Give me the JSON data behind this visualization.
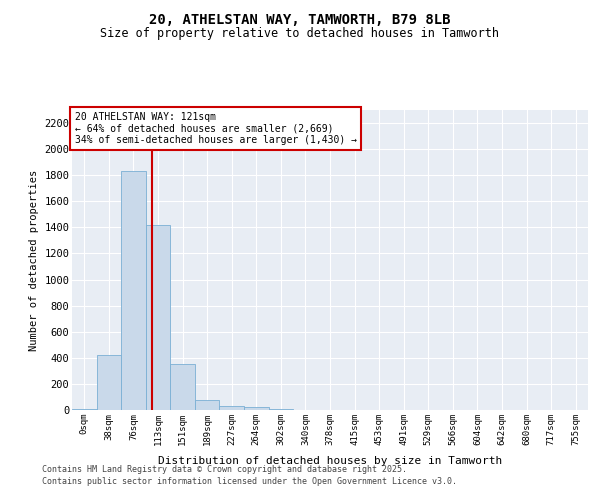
{
  "title1": "20, ATHELSTAN WAY, TAMWORTH, B79 8LB",
  "title2": "Size of property relative to detached houses in Tamworth",
  "xlabel": "Distribution of detached houses by size in Tamworth",
  "ylabel": "Number of detached properties",
  "bar_labels": [
    "0sqm",
    "38sqm",
    "76sqm",
    "113sqm",
    "151sqm",
    "189sqm",
    "227sqm",
    "264sqm",
    "302sqm",
    "340sqm",
    "378sqm",
    "415sqm",
    "453sqm",
    "491sqm",
    "529sqm",
    "566sqm",
    "604sqm",
    "642sqm",
    "680sqm",
    "717sqm",
    "755sqm"
  ],
  "bar_values": [
    10,
    420,
    1830,
    1420,
    350,
    75,
    30,
    20,
    5,
    0,
    0,
    0,
    0,
    0,
    0,
    0,
    0,
    0,
    0,
    0,
    0
  ],
  "bar_color": "#c9d9ea",
  "bar_edgecolor": "#7aafd4",
  "vline_x": 2.76,
  "vline_color": "#cc0000",
  "annotation_line1": "20 ATHELSTAN WAY: 121sqm",
  "annotation_line2": "← 64% of detached houses are smaller (2,669)",
  "annotation_line3": "34% of semi-detached houses are larger (1,430) →",
  "annotation_box_color": "#cc0000",
  "ylim": [
    0,
    2300
  ],
  "yticks": [
    0,
    200,
    400,
    600,
    800,
    1000,
    1200,
    1400,
    1600,
    1800,
    2000,
    2200
  ],
  "fig_bg_color": "#ffffff",
  "plot_bg_color": "#e8edf4",
  "grid_color": "#ffffff",
  "footer1": "Contains HM Land Registry data © Crown copyright and database right 2025.",
  "footer2": "Contains public sector information licensed under the Open Government Licence v3.0."
}
